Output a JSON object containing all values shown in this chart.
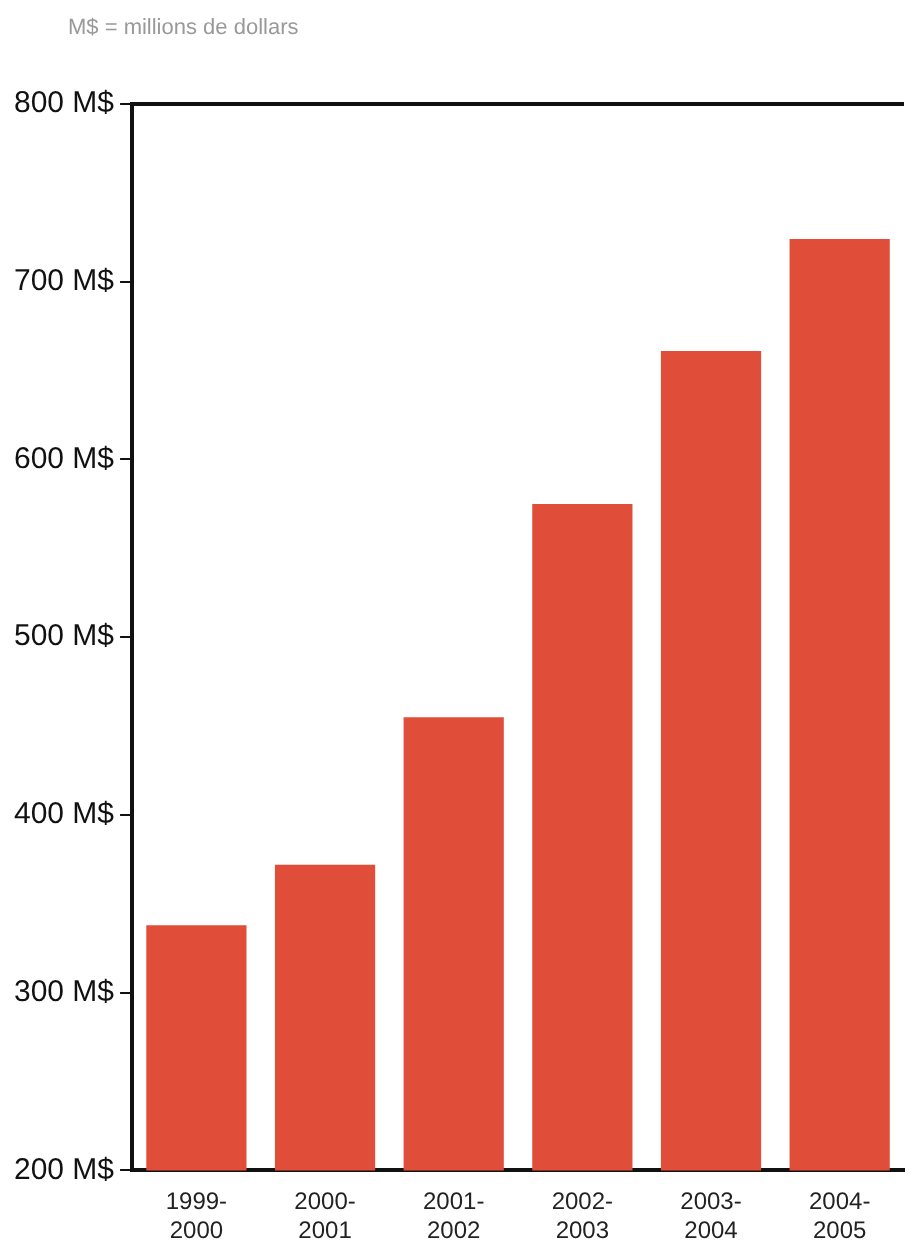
{
  "chart_data": {
    "type": "bar",
    "title": "M$ = millions de dollars",
    "categories": [
      "1999-2000",
      "2000-2001",
      "2001-2002",
      "2002-2003",
      "2003-2004",
      "2004-2005"
    ],
    "values": [
      338,
      372,
      455,
      575,
      661,
      724
    ],
    "color": "#e04e3a",
    "ylim": [
      200,
      800
    ],
    "yticks": [
      {
        "value": 200,
        "label": "200 M$"
      },
      {
        "value": 300,
        "label": "300 M$"
      },
      {
        "value": 400,
        "label": "400 M$"
      },
      {
        "value": 500,
        "label": "500 M$"
      },
      {
        "value": 600,
        "label": "600 M$"
      },
      {
        "value": 700,
        "label": "700 M$"
      },
      {
        "value": 800,
        "label": "800 M$"
      }
    ],
    "grid": false
  }
}
